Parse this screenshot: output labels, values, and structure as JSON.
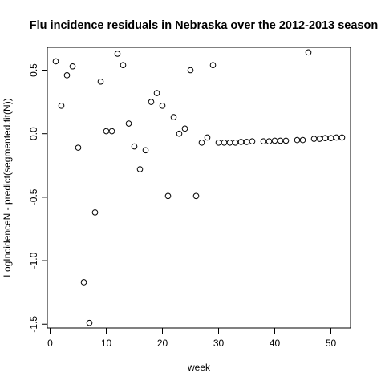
{
  "chart_data": {
    "type": "scatter",
    "title": "Flu incidence residuals in Nebraska over the 2012-2013 season",
    "xlabel": "week",
    "ylabel": "LogIncidenceN - predict(segmented.fit(N))",
    "xlim": [
      -0.5,
      53.5
    ],
    "ylim": [
      -1.53,
      0.68
    ],
    "x_ticks": [
      0,
      10,
      20,
      30,
      40,
      50
    ],
    "y_ticks": [
      -1.5,
      -1.0,
      -0.5,
      0.0,
      0.5
    ],
    "x_tick_labels": [
      "0",
      "10",
      "20",
      "30",
      "40",
      "50"
    ],
    "y_tick_labels": [
      "-1.5",
      "-1.0",
      "-0.5",
      "0.0",
      "0.5"
    ],
    "marker": "open-circle",
    "grid": false,
    "x": [
      1,
      2,
      3,
      4,
      5,
      6,
      7,
      8,
      9,
      10,
      11,
      12,
      13,
      14,
      15,
      16,
      17,
      18,
      19,
      20,
      21,
      22,
      23,
      24,
      25,
      26,
      27,
      28,
      29,
      30,
      31,
      32,
      33,
      34,
      35,
      36,
      38,
      39,
      40,
      41,
      42,
      44,
      45,
      46,
      47,
      48,
      49,
      50,
      51,
      52
    ],
    "y": [
      0.57,
      0.22,
      0.46,
      0.53,
      -0.11,
      -1.17,
      -1.49,
      -0.62,
      0.41,
      0.02,
      0.02,
      0.63,
      0.54,
      0.08,
      -0.1,
      -0.28,
      -0.13,
      0.25,
      0.32,
      0.22,
      -0.49,
      0.13,
      0.0,
      0.04,
      0.5,
      -0.49,
      -0.07,
      -0.03,
      0.54,
      -0.07,
      -0.07,
      -0.07,
      -0.07,
      -0.065,
      -0.065,
      -0.06,
      -0.06,
      -0.06,
      -0.055,
      -0.055,
      -0.055,
      -0.05,
      -0.05,
      0.64,
      -0.04,
      -0.04,
      -0.035,
      -0.035,
      -0.03,
      -0.03
    ]
  }
}
